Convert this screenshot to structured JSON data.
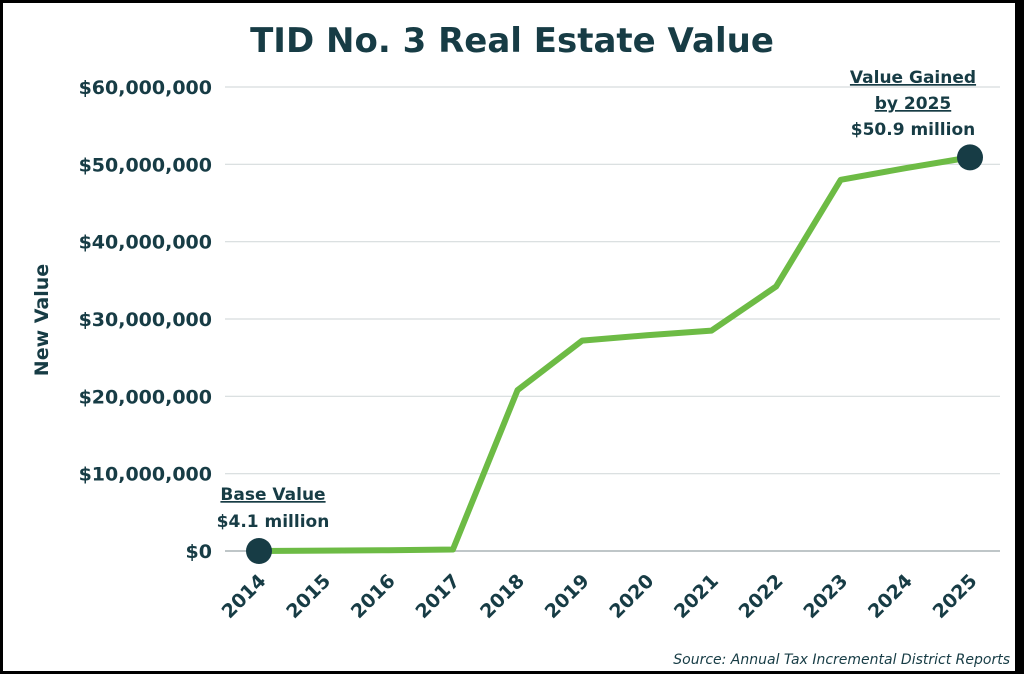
{
  "chart_data": {
    "type": "line",
    "title": "TID No. 3 Real Estate Value",
    "ylabel": "New Value",
    "xlabel": "",
    "categories": [
      "2014",
      "2015",
      "2016",
      "2017",
      "2018",
      "2019",
      "2020",
      "2021",
      "2022",
      "2023",
      "2024",
      "2025"
    ],
    "values": [
      0,
      50000,
      100000,
      200000,
      20800000,
      27200000,
      27900000,
      28500000,
      34200000,
      48000000,
      49500000,
      50900000
    ],
    "ylim": [
      0,
      60000000
    ],
    "yticks": [
      0,
      10000000,
      20000000,
      30000000,
      40000000,
      50000000,
      60000000
    ],
    "ytick_labels": [
      "$0",
      "$10,000,000",
      "$20,000,000",
      "$30,000,000",
      "$40,000,000",
      "$50,000,000",
      "$60,000,000"
    ],
    "grid": true,
    "line_color": "#6dbb45",
    "marker_color": "#173c45",
    "annotations": [
      {
        "x": "2014",
        "heading": "Base Value",
        "text": "$4.1 million"
      },
      {
        "x": "2025",
        "heading_lines": [
          "Value Gained",
          "by 2025"
        ],
        "text": "$50.9 million"
      }
    ],
    "source": "Source: Annual Tax Incremental District Reports"
  }
}
